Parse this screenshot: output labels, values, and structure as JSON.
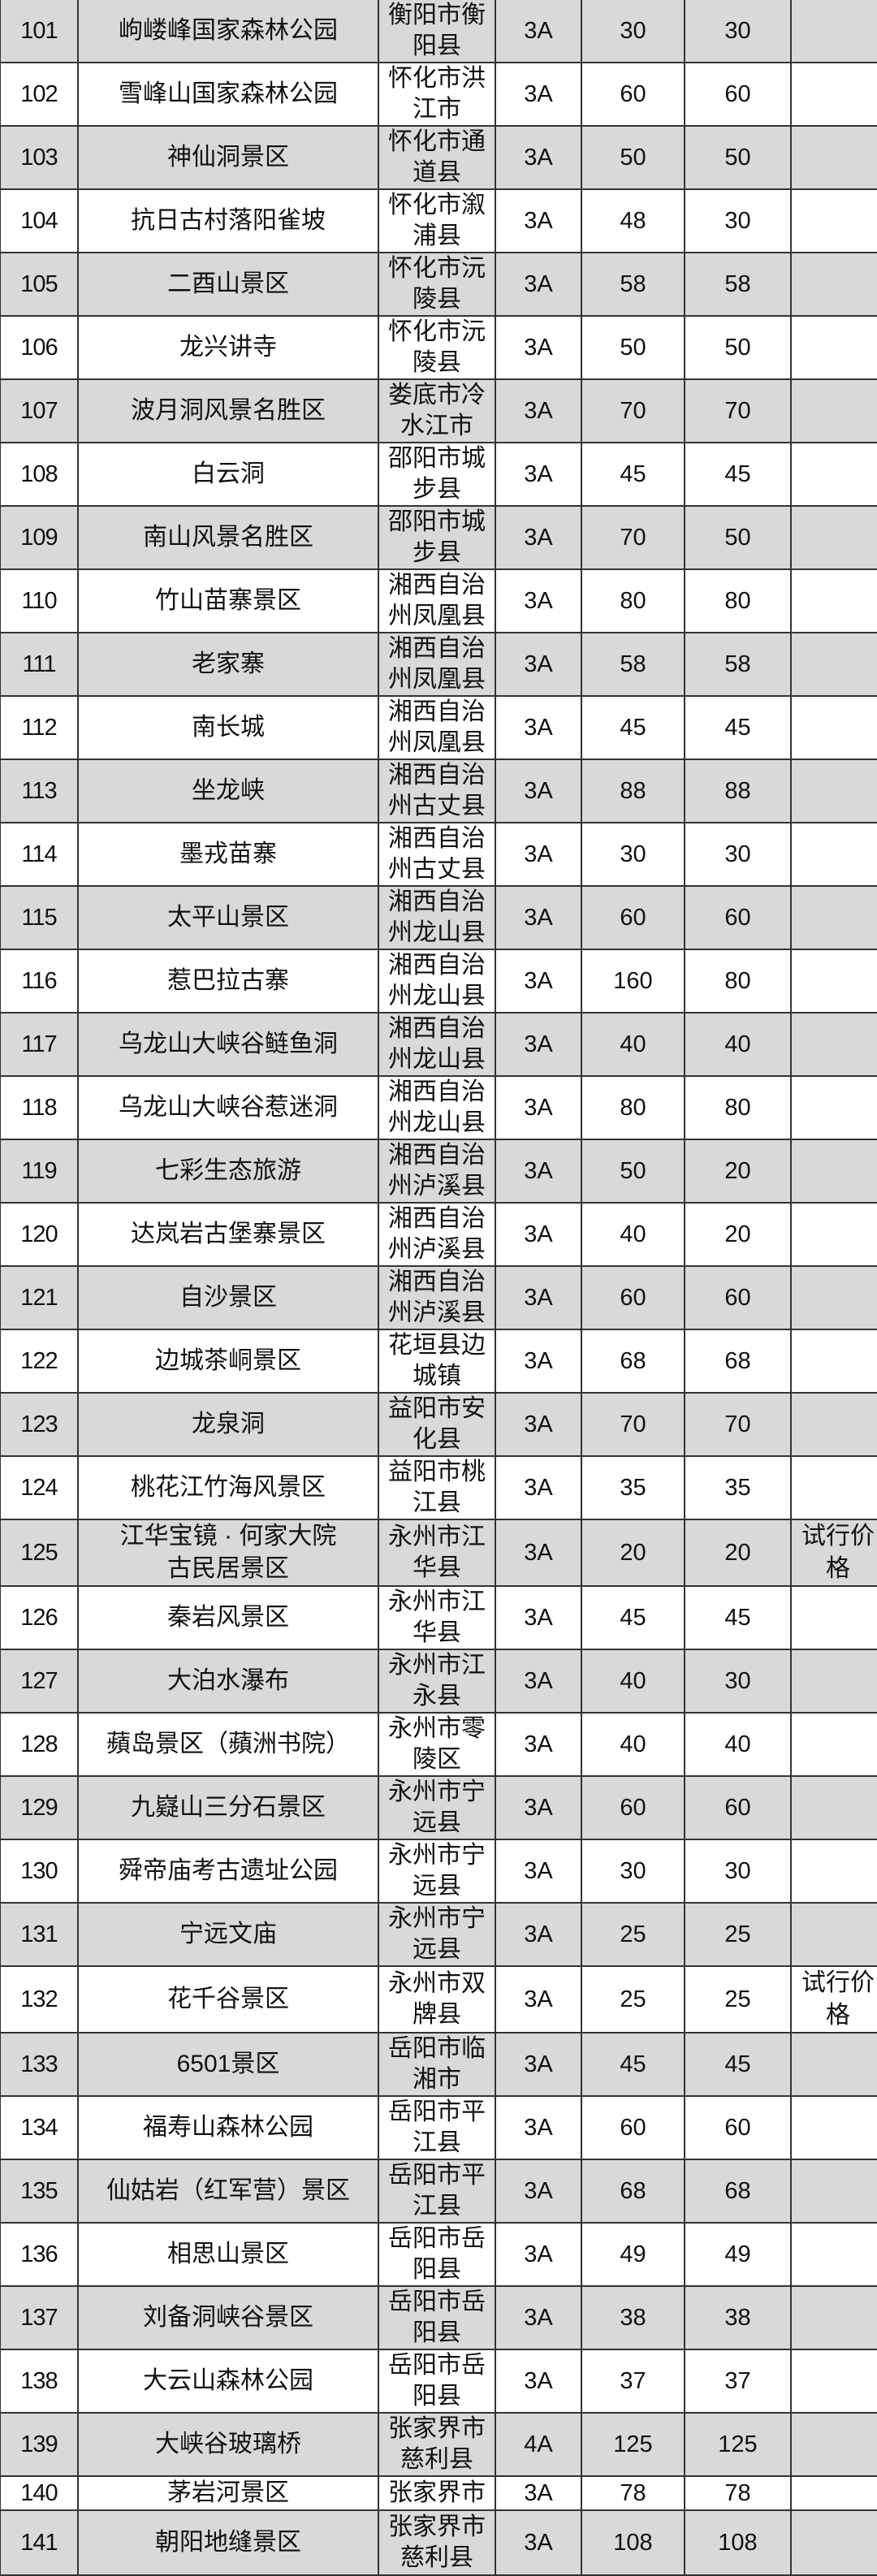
{
  "table": {
    "row_colors": {
      "odd": "#d9d9d9",
      "even": "#ffffff"
    },
    "rows": [
      {
        "no": "101",
        "name": "岣嵝峰国家森林公园",
        "region": "衡阳市衡阳县",
        "grade": "3A",
        "price": "30",
        "price2": "30",
        "note": ""
      },
      {
        "no": "102",
        "name": "雪峰山国家森林公园",
        "region": "怀化市洪江市",
        "grade": "3A",
        "price": "60",
        "price2": "60",
        "note": ""
      },
      {
        "no": "103",
        "name": "神仙洞景区",
        "region": "怀化市通道县",
        "grade": "3A",
        "price": "50",
        "price2": "50",
        "note": ""
      },
      {
        "no": "104",
        "name": "抗日古村落阳雀坡",
        "region": "怀化市溆浦县",
        "grade": "3A",
        "price": "48",
        "price2": "30",
        "note": ""
      },
      {
        "no": "105",
        "name": "二酉山景区",
        "region": "怀化市沅陵县",
        "grade": "3A",
        "price": "58",
        "price2": "58",
        "note": ""
      },
      {
        "no": "106",
        "name": "龙兴讲寺",
        "region": "怀化市沅陵县",
        "grade": "3A",
        "price": "50",
        "price2": "50",
        "note": ""
      },
      {
        "no": "107",
        "name": "波月洞风景名胜区",
        "region": "娄底市冷水江市",
        "grade": "3A",
        "price": "70",
        "price2": "70",
        "note": ""
      },
      {
        "no": "108",
        "name": "白云洞",
        "region": "邵阳市城步县",
        "grade": "3A",
        "price": "45",
        "price2": "45",
        "note": ""
      },
      {
        "no": "109",
        "name": "南山风景名胜区",
        "region": "邵阳市城步县",
        "grade": "3A",
        "price": "70",
        "price2": "50",
        "note": ""
      },
      {
        "no": "110",
        "name": "竹山苗寨景区",
        "region": "湘西自治州凤凰县",
        "grade": "3A",
        "price": "80",
        "price2": "80",
        "note": ""
      },
      {
        "no": "111",
        "name": "老家寨",
        "region": "湘西自治州凤凰县",
        "grade": "3A",
        "price": "58",
        "price2": "58",
        "note": ""
      },
      {
        "no": "112",
        "name": "南长城",
        "region": "湘西自治州凤凰县",
        "grade": "3A",
        "price": "45",
        "price2": "45",
        "note": ""
      },
      {
        "no": "113",
        "name": "坐龙峡",
        "region": "湘西自治州古丈县",
        "grade": "3A",
        "price": "88",
        "price2": "88",
        "note": ""
      },
      {
        "no": "114",
        "name": "墨戎苗寨",
        "region": "湘西自治州古丈县",
        "grade": "3A",
        "price": "30",
        "price2": "30",
        "note": ""
      },
      {
        "no": "115",
        "name": "太平山景区",
        "region": "湘西自治州龙山县",
        "grade": "3A",
        "price": "60",
        "price2": "60",
        "note": ""
      },
      {
        "no": "116",
        "name": "惹巴拉古寨",
        "region": "湘西自治州龙山县",
        "grade": "3A",
        "price": "160",
        "price2": "80",
        "note": ""
      },
      {
        "no": "117",
        "name": "乌龙山大峡谷鲢鱼洞",
        "region": "湘西自治州龙山县",
        "grade": "3A",
        "price": "40",
        "price2": "40",
        "note": ""
      },
      {
        "no": "118",
        "name": "乌龙山大峡谷惹迷洞",
        "region": "湘西自治州龙山县",
        "grade": "3A",
        "price": "80",
        "price2": "80",
        "note": ""
      },
      {
        "no": "119",
        "name": "七彩生态旅游",
        "region": "湘西自治州泸溪县",
        "grade": "3A",
        "price": "50",
        "price2": "20",
        "note": ""
      },
      {
        "no": "120",
        "name": "达岚岩古堡寨景区",
        "region": "湘西自治州泸溪县",
        "grade": "3A",
        "price": "40",
        "price2": "20",
        "note": ""
      },
      {
        "no": "121",
        "name": "自沙景区",
        "region": "湘西自治州泸溪县",
        "grade": "3A",
        "price": "60",
        "price2": "60",
        "note": ""
      },
      {
        "no": "122",
        "name": "边城茶峒景区",
        "region": "花垣县边城镇",
        "grade": "3A",
        "price": "68",
        "price2": "68",
        "note": ""
      },
      {
        "no": "123",
        "name": "龙泉洞",
        "region": "益阳市安化县",
        "grade": "3A",
        "price": "70",
        "price2": "70",
        "note": ""
      },
      {
        "no": "124",
        "name": "桃花江竹海风景区",
        "region": "益阳市桃江县",
        "grade": "3A",
        "price": "35",
        "price2": "35",
        "note": ""
      },
      {
        "no": "125",
        "name": "江华宝镜 · 何家大院\n古民居景区",
        "region": "永州市江华县",
        "grade": "3A",
        "price": "20",
        "price2": "20",
        "note": "试行价格"
      },
      {
        "no": "126",
        "name": "秦岩风景区",
        "region": "永州市江华县",
        "grade": "3A",
        "price": "45",
        "price2": "45",
        "note": ""
      },
      {
        "no": "127",
        "name": "大泊水瀑布",
        "region": "永州市江永县",
        "grade": "3A",
        "price": "40",
        "price2": "30",
        "note": ""
      },
      {
        "no": "128",
        "name": "蘋岛景区（蘋洲书院）",
        "region": "永州市零陵区",
        "grade": "3A",
        "price": "40",
        "price2": "40",
        "note": ""
      },
      {
        "no": "129",
        "name": "九嶷山三分石景区",
        "region": "永州市宁远县",
        "grade": "3A",
        "price": "60",
        "price2": "60",
        "note": ""
      },
      {
        "no": "130",
        "name": "舜帝庙考古遗址公园",
        "region": "永州市宁远县",
        "grade": "3A",
        "price": "30",
        "price2": "30",
        "note": ""
      },
      {
        "no": "131",
        "name": "宁远文庙",
        "region": "永州市宁远县",
        "grade": "3A",
        "price": "25",
        "price2": "25",
        "note": ""
      },
      {
        "no": "132",
        "name": "花千谷景区",
        "region": "永州市双牌县",
        "grade": "3A",
        "price": "25",
        "price2": "25",
        "note": "试行价格"
      },
      {
        "no": "133",
        "name": "6501景区",
        "region": "岳阳市临湘市",
        "grade": "3A",
        "price": "45",
        "price2": "45",
        "note": ""
      },
      {
        "no": "134",
        "name": "福寿山森林公园",
        "region": "岳阳市平江县",
        "grade": "3A",
        "price": "60",
        "price2": "60",
        "note": ""
      },
      {
        "no": "135",
        "name": "仙姑岩（红军营）景区",
        "region": "岳阳市平江县",
        "grade": "3A",
        "price": "68",
        "price2": "68",
        "note": ""
      },
      {
        "no": "136",
        "name": "相思山景区",
        "region": "岳阳市岳阳县",
        "grade": "3A",
        "price": "49",
        "price2": "49",
        "note": ""
      },
      {
        "no": "137",
        "name": "刘备洞峡谷景区",
        "region": "岳阳市岳阳县",
        "grade": "3A",
        "price": "38",
        "price2": "38",
        "note": ""
      },
      {
        "no": "138",
        "name": "大云山森林公园",
        "region": "岳阳市岳阳县",
        "grade": "3A",
        "price": "37",
        "price2": "37",
        "note": ""
      },
      {
        "no": "139",
        "name": "大峡谷玻璃桥",
        "region": "张家界市慈利县",
        "grade": "4A",
        "price": "125",
        "price2": "125",
        "note": ""
      },
      {
        "no": "140",
        "name": "茅岩河景区",
        "region": "张家界市",
        "grade": "3A",
        "price": "78",
        "price2": "78",
        "note": ""
      },
      {
        "no": "141",
        "name": "朝阳地缝景区",
        "region": "张家界市慈利县",
        "grade": "3A",
        "price": "108",
        "price2": "108",
        "note": ""
      }
    ]
  }
}
